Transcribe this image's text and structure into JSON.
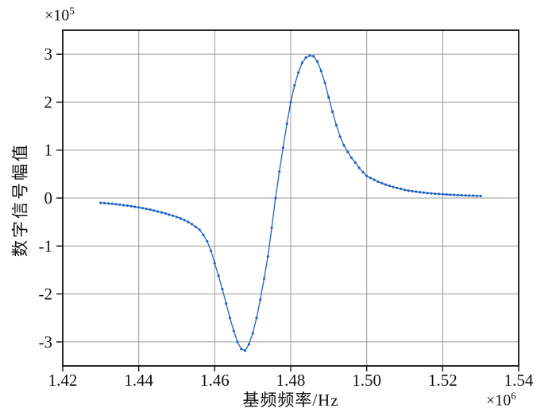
{
  "figure": {
    "background": "#ffffff",
    "y_axis_multiplier": {
      "prefix": "×10",
      "exponent": "5"
    },
    "x_axis_multiplier": {
      "prefix": "×10",
      "exponent": "6"
    }
  },
  "chart_data": {
    "type": "line",
    "title": "",
    "xlabel": "基频频率/Hz",
    "ylabel": "数字信号幅值",
    "x_scale_note": "x values in units of 10^6 Hz",
    "y_scale_note": "y values in units of 10^5",
    "xlim": [
      1.42,
      1.54
    ],
    "ylim": [
      -3.5,
      3.5
    ],
    "x_ticks": [
      1.42,
      1.44,
      1.46,
      1.48,
      1.5,
      1.52,
      1.54
    ],
    "x_tick_labels": [
      "1.42",
      "1.44",
      "1.46",
      "1.48",
      "1.50",
      "1.52",
      "1.54"
    ],
    "y_ticks": [
      3,
      2,
      1,
      0,
      -1,
      -2,
      -3
    ],
    "y_tick_labels": [
      "3",
      "2",
      "1",
      "0",
      "-1",
      "-2",
      "-3"
    ],
    "grid": true,
    "legend": null,
    "line_color": "#1f63c4",
    "marker": "circle",
    "marker_radius": 1.6,
    "series": [
      {
        "name": "数字信号幅值",
        "x": [
          1.43,
          1.431,
          1.432,
          1.433,
          1.434,
          1.435,
          1.436,
          1.437,
          1.438,
          1.439,
          1.44,
          1.441,
          1.442,
          1.443,
          1.444,
          1.445,
          1.446,
          1.447,
          1.448,
          1.449,
          1.45,
          1.451,
          1.452,
          1.453,
          1.454,
          1.455,
          1.456,
          1.457,
          1.458,
          1.459,
          1.46,
          1.461,
          1.462,
          1.463,
          1.464,
          1.465,
          1.466,
          1.467,
          1.468,
          1.469,
          1.47,
          1.471,
          1.472,
          1.473,
          1.474,
          1.475,
          1.476,
          1.477,
          1.478,
          1.479,
          1.48,
          1.481,
          1.482,
          1.483,
          1.484,
          1.485,
          1.486,
          1.487,
          1.488,
          1.489,
          1.49,
          1.491,
          1.492,
          1.493,
          1.494,
          1.495,
          1.496,
          1.497,
          1.498,
          1.499,
          1.5,
          1.501,
          1.502,
          1.503,
          1.504,
          1.505,
          1.506,
          1.507,
          1.508,
          1.509,
          1.51,
          1.511,
          1.512,
          1.513,
          1.514,
          1.515,
          1.516,
          1.517,
          1.518,
          1.519,
          1.52,
          1.521,
          1.522,
          1.523,
          1.524,
          1.525,
          1.526,
          1.527,
          1.528,
          1.529,
          1.53
        ],
        "y": [
          -0.1,
          -0.105,
          -0.112,
          -0.12,
          -0.128,
          -0.138,
          -0.148,
          -0.158,
          -0.17,
          -0.182,
          -0.195,
          -0.21,
          -0.225,
          -0.24,
          -0.26,
          -0.28,
          -0.3,
          -0.32,
          -0.345,
          -0.37,
          -0.395,
          -0.425,
          -0.46,
          -0.5,
          -0.545,
          -0.6,
          -0.66,
          -0.77,
          -0.9,
          -1.1,
          -1.36,
          -1.62,
          -1.9,
          -2.2,
          -2.5,
          -2.77,
          -3.0,
          -3.15,
          -3.18,
          -3.05,
          -2.82,
          -2.5,
          -2.12,
          -1.68,
          -1.22,
          -0.62,
          0.0,
          0.55,
          1.05,
          1.55,
          2.0,
          2.35,
          2.62,
          2.82,
          2.93,
          2.97,
          2.96,
          2.85,
          2.65,
          2.4,
          2.1,
          1.8,
          1.52,
          1.28,
          1.1,
          0.96,
          0.84,
          0.74,
          0.63,
          0.54,
          0.46,
          0.42,
          0.38,
          0.34,
          0.31,
          0.28,
          0.255,
          0.23,
          0.21,
          0.19,
          0.17,
          0.155,
          0.145,
          0.133,
          0.123,
          0.114,
          0.105,
          0.098,
          0.09,
          0.085,
          0.08,
          0.075,
          0.07,
          0.066,
          0.062,
          0.058,
          0.055,
          0.052,
          0.049,
          0.046,
          0.043
        ]
      }
    ]
  }
}
